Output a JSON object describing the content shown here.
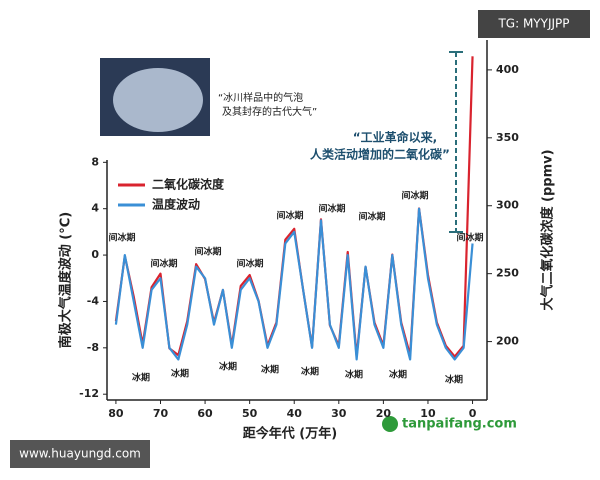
{
  "chart_data": {
    "type": "line",
    "x_label": "距今年代 (万年)",
    "y_label": "南极大气温度波动 (°C)",
    "y2_label": "大气二氧化碳浓度 (ppmv)",
    "caption": [
      "“冰川样品中的气泡",
      "及其封存的古代大气”"
    ],
    "callout": [
      "“工业革命以来,",
      "人类活动增加的二氧化碳”"
    ],
    "watermark_top": "TG: MYYJJPP",
    "watermark_bottom": "www.huayungd.com",
    "logo": "tanpaifang.com",
    "annotations": [
      "间冰期",
      "间冰期",
      "间冰期",
      "间冰期",
      "间冰期",
      "间冰期",
      "间冰期",
      "间冰期",
      "间冰期",
      "冰期",
      "冰期",
      "冰期",
      "冰期",
      "冰期",
      "冰期",
      "冰期",
      "冰期"
    ],
    "x": [
      80,
      78,
      76,
      74,
      72,
      70,
      68,
      66,
      64,
      62,
      60,
      58,
      56,
      54,
      52,
      50,
      48,
      46,
      44,
      42,
      40,
      38,
      36,
      34,
      32,
      30,
      28,
      26,
      24,
      22,
      20,
      18,
      16,
      14,
      12,
      10,
      8,
      6,
      4,
      2,
      0
    ],
    "series": [
      {
        "name": "二氧化碳浓度",
        "color": "#d9232e",
        "axis": "y2",
        "values": [
          215,
          263,
          233,
          198,
          240,
          250,
          195,
          190,
          215,
          257,
          246,
          214,
          238,
          197,
          241,
          249,
          230,
          197,
          214,
          275,
          283,
          238,
          196,
          290,
          212,
          197,
          266,
          189,
          255,
          214,
          197,
          264,
          214,
          190,
          298,
          249,
          214,
          197,
          189,
          197,
          410
        ]
      },
      {
        "name": "温度波动",
        "color": "#3a8fd6",
        "values": [
          -6,
          0,
          -4,
          -8,
          -3,
          -2,
          -8,
          -9,
          -6,
          -1,
          -2,
          -6,
          -3,
          -8,
          -3,
          -2,
          -4,
          -8,
          -6,
          1,
          2,
          -3,
          -8,
          3,
          -6,
          -8,
          0,
          -9,
          -1,
          -6,
          -8,
          0,
          -6,
          -9,
          4,
          -2,
          -6,
          -8,
          -9,
          -8,
          1
        ]
      }
    ],
    "xlim": [
      82,
      -1
    ],
    "xticks": [
      80,
      70,
      60,
      50,
      40,
      30,
      20,
      10,
      0
    ],
    "ylim": [
      -12.5,
      8.2
    ],
    "yticks": [
      -12,
      -8,
      -4,
      0,
      4,
      8
    ],
    "y2lim": [
      157,
      422
    ],
    "y2ticks": [
      200,
      250,
      300,
      350,
      400
    ],
    "legend": "upper left"
  }
}
